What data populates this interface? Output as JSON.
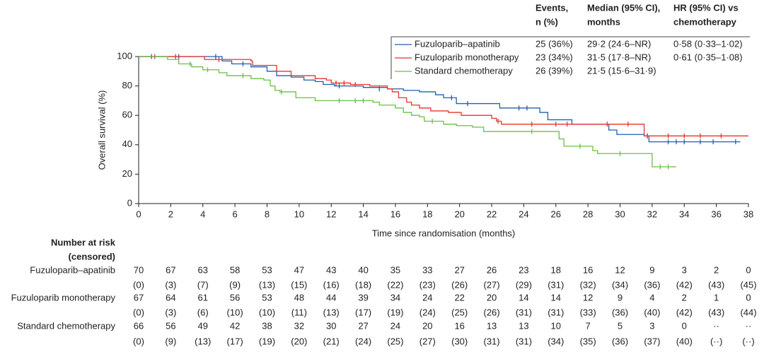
{
  "chart_data": {
    "type": "step",
    "y_label": "Overall survival (%)",
    "x_label": "Time since randomisation (months)",
    "xlim": [
      0,
      38
    ],
    "xticks": [
      0,
      2,
      4,
      6,
      8,
      10,
      12,
      14,
      16,
      18,
      20,
      22,
      24,
      26,
      28,
      30,
      32,
      34,
      36,
      38
    ],
    "ylim": [
      0,
      100
    ],
    "yticks": [
      0,
      20,
      40,
      60,
      80,
      100
    ],
    "series": [
      {
        "name": "Fuzuloparib–apatinib",
        "color": "#1f5fae",
        "x": [
          0,
          5.2,
          5.8,
          7,
          8,
          8.6,
          9.5,
          10.3,
          11,
          11.5,
          12.2,
          14,
          15.5,
          16.5,
          17.5,
          18.5,
          19,
          19.8,
          22.5,
          25,
          25.5,
          27,
          29.3,
          29.8,
          31.5,
          31.8,
          37.5
        ],
        "values": [
          100,
          97,
          95,
          93,
          90,
          87,
          86,
          84,
          83,
          81,
          80,
          79,
          78,
          77,
          76,
          74,
          72,
          68,
          65,
          62,
          57,
          54,
          50,
          47,
          46,
          42,
          42
        ],
        "censor_x": [
          0.8,
          2.5,
          4.8,
          6.5,
          12.5,
          15,
          19.5,
          20.5,
          23.7,
          24.2,
          31.7,
          33,
          33.5,
          34,
          35,
          35.8,
          37.2
        ],
        "censor_values": [
          100,
          100,
          100,
          95,
          80,
          78,
          72,
          68,
          65,
          65,
          46,
          42,
          42,
          42,
          42,
          42,
          42
        ]
      },
      {
        "name": "Fuzuloparib monotherapy",
        "color": "#e8322d",
        "x": [
          0,
          4.1,
          7,
          7.1,
          8.6,
          9.5,
          11,
          11.7,
          12,
          13.2,
          14.4,
          15.5,
          15.8,
          16.2,
          16.7,
          17,
          17.5,
          18.2,
          19.3,
          20.1,
          22,
          22.3,
          22.6,
          31.5,
          38
        ],
        "values": [
          100,
          98,
          97,
          94,
          90,
          87,
          85,
          84,
          82,
          81,
          80,
          78,
          76,
          72,
          69,
          67,
          65,
          63,
          62,
          60,
          58,
          56,
          54,
          46,
          46
        ],
        "censor_x": [
          1,
          2.3,
          5,
          12.3,
          12.8,
          13.5,
          22.4,
          24.5,
          26,
          26.7,
          29.2,
          30.5,
          31.7,
          33,
          34,
          35,
          36.3
        ],
        "censor_values": [
          100,
          100,
          98,
          82,
          82,
          81,
          56,
          54,
          54,
          54,
          54,
          54,
          46,
          46,
          46,
          46,
          46
        ]
      },
      {
        "name": "Standard chemotherapy",
        "color": "#6cbf45",
        "x": [
          0,
          1.8,
          2.5,
          3.3,
          4,
          5,
          5.5,
          7,
          7.8,
          8.2,
          8.5,
          8.8,
          9.8,
          11,
          14.6,
          15,
          16,
          16.5,
          17,
          17.5,
          17.8,
          19,
          19.8,
          20.8,
          21.5,
          26.2,
          26.5,
          28.3,
          28.6,
          32,
          33.5
        ],
        "values": [
          100,
          98,
          95,
          93,
          91,
          89,
          87,
          85,
          84,
          80,
          77,
          76,
          72,
          70,
          69,
          67,
          65,
          62,
          60,
          59,
          56,
          54,
          53,
          52,
          49,
          44,
          39,
          36,
          34,
          25,
          25
        ],
        "censor_x": [
          3.2,
          4.3,
          6.5,
          8.9,
          12.5,
          13.5,
          14,
          18.3,
          24.5,
          27.5,
          30,
          32.5,
          33
        ],
        "censor_values": [
          95,
          91,
          87,
          76,
          70,
          70,
          70,
          56,
          49,
          39,
          34,
          25,
          25
        ]
      }
    ],
    "legend_table": {
      "headers": [
        [
          "Events,",
          "n (%)"
        ],
        [
          "Median (95% CI),",
          "months"
        ],
        [
          "HR (95% CI) vs",
          "chemotherapy"
        ]
      ],
      "rows": [
        [
          "25 (36%)",
          "29·2 (24·6–NR)",
          "0·58 (0·33–1·02)"
        ],
        [
          "23 (34%)",
          "31·5 (17·8–NR)",
          "0·61 (0·35–1·08)"
        ],
        [
          "26 (39%)",
          "21·5 (15·6–31·9)"
        ]
      ]
    },
    "risk_table": {
      "title": [
        "Number at risk",
        "(censored)"
      ],
      "rows": [
        {
          "at_risk": [
            70,
            67,
            63,
            58,
            53,
            47,
            43,
            40,
            35,
            33,
            27,
            26,
            23,
            18,
            16,
            12,
            9,
            3,
            2,
            0
          ],
          "censored": [
            "(0)",
            "(3)",
            "(7)",
            "(9)",
            "(13)",
            "(15)",
            "(16)",
            "(18)",
            "(22)",
            "(23)",
            "(26)",
            "(27)",
            "(29)",
            "(31)",
            "(32)",
            "(34)",
            "(36)",
            "(42)",
            "(43)",
            "(45)"
          ]
        },
        {
          "at_risk": [
            67,
            64,
            61,
            56,
            53,
            48,
            44,
            39,
            34,
            24,
            22,
            20,
            14,
            14,
            12,
            9,
            4,
            2,
            1,
            0
          ],
          "censored": [
            "(0)",
            "(3)",
            "(6)",
            "(10)",
            "(10)",
            "(11)",
            "(13)",
            "(17)",
            "(19)",
            "(24)",
            "(25)",
            "(26)",
            "(31)",
            "(31)",
            "(33)",
            "(36)",
            "(40)",
            "(42)",
            "(43)",
            "(44)"
          ]
        },
        {
          "at_risk": [
            66,
            56,
            49,
            42,
            38,
            32,
            30,
            27,
            24,
            20,
            16,
            13,
            13,
            10,
            7,
            5,
            3,
            0,
            "··",
            "··"
          ],
          "censored": [
            "(0)",
            "(9)",
            "(13)",
            "(17)",
            "(19)",
            "(20)",
            "(21)",
            "(24)",
            "(25)",
            "(27)",
            "(30)",
            "(31)",
            "(31)",
            "(34)",
            "(35)",
            "(36)",
            "(37)",
            "(40)",
            "(··)",
            "(··)"
          ]
        }
      ]
    }
  }
}
